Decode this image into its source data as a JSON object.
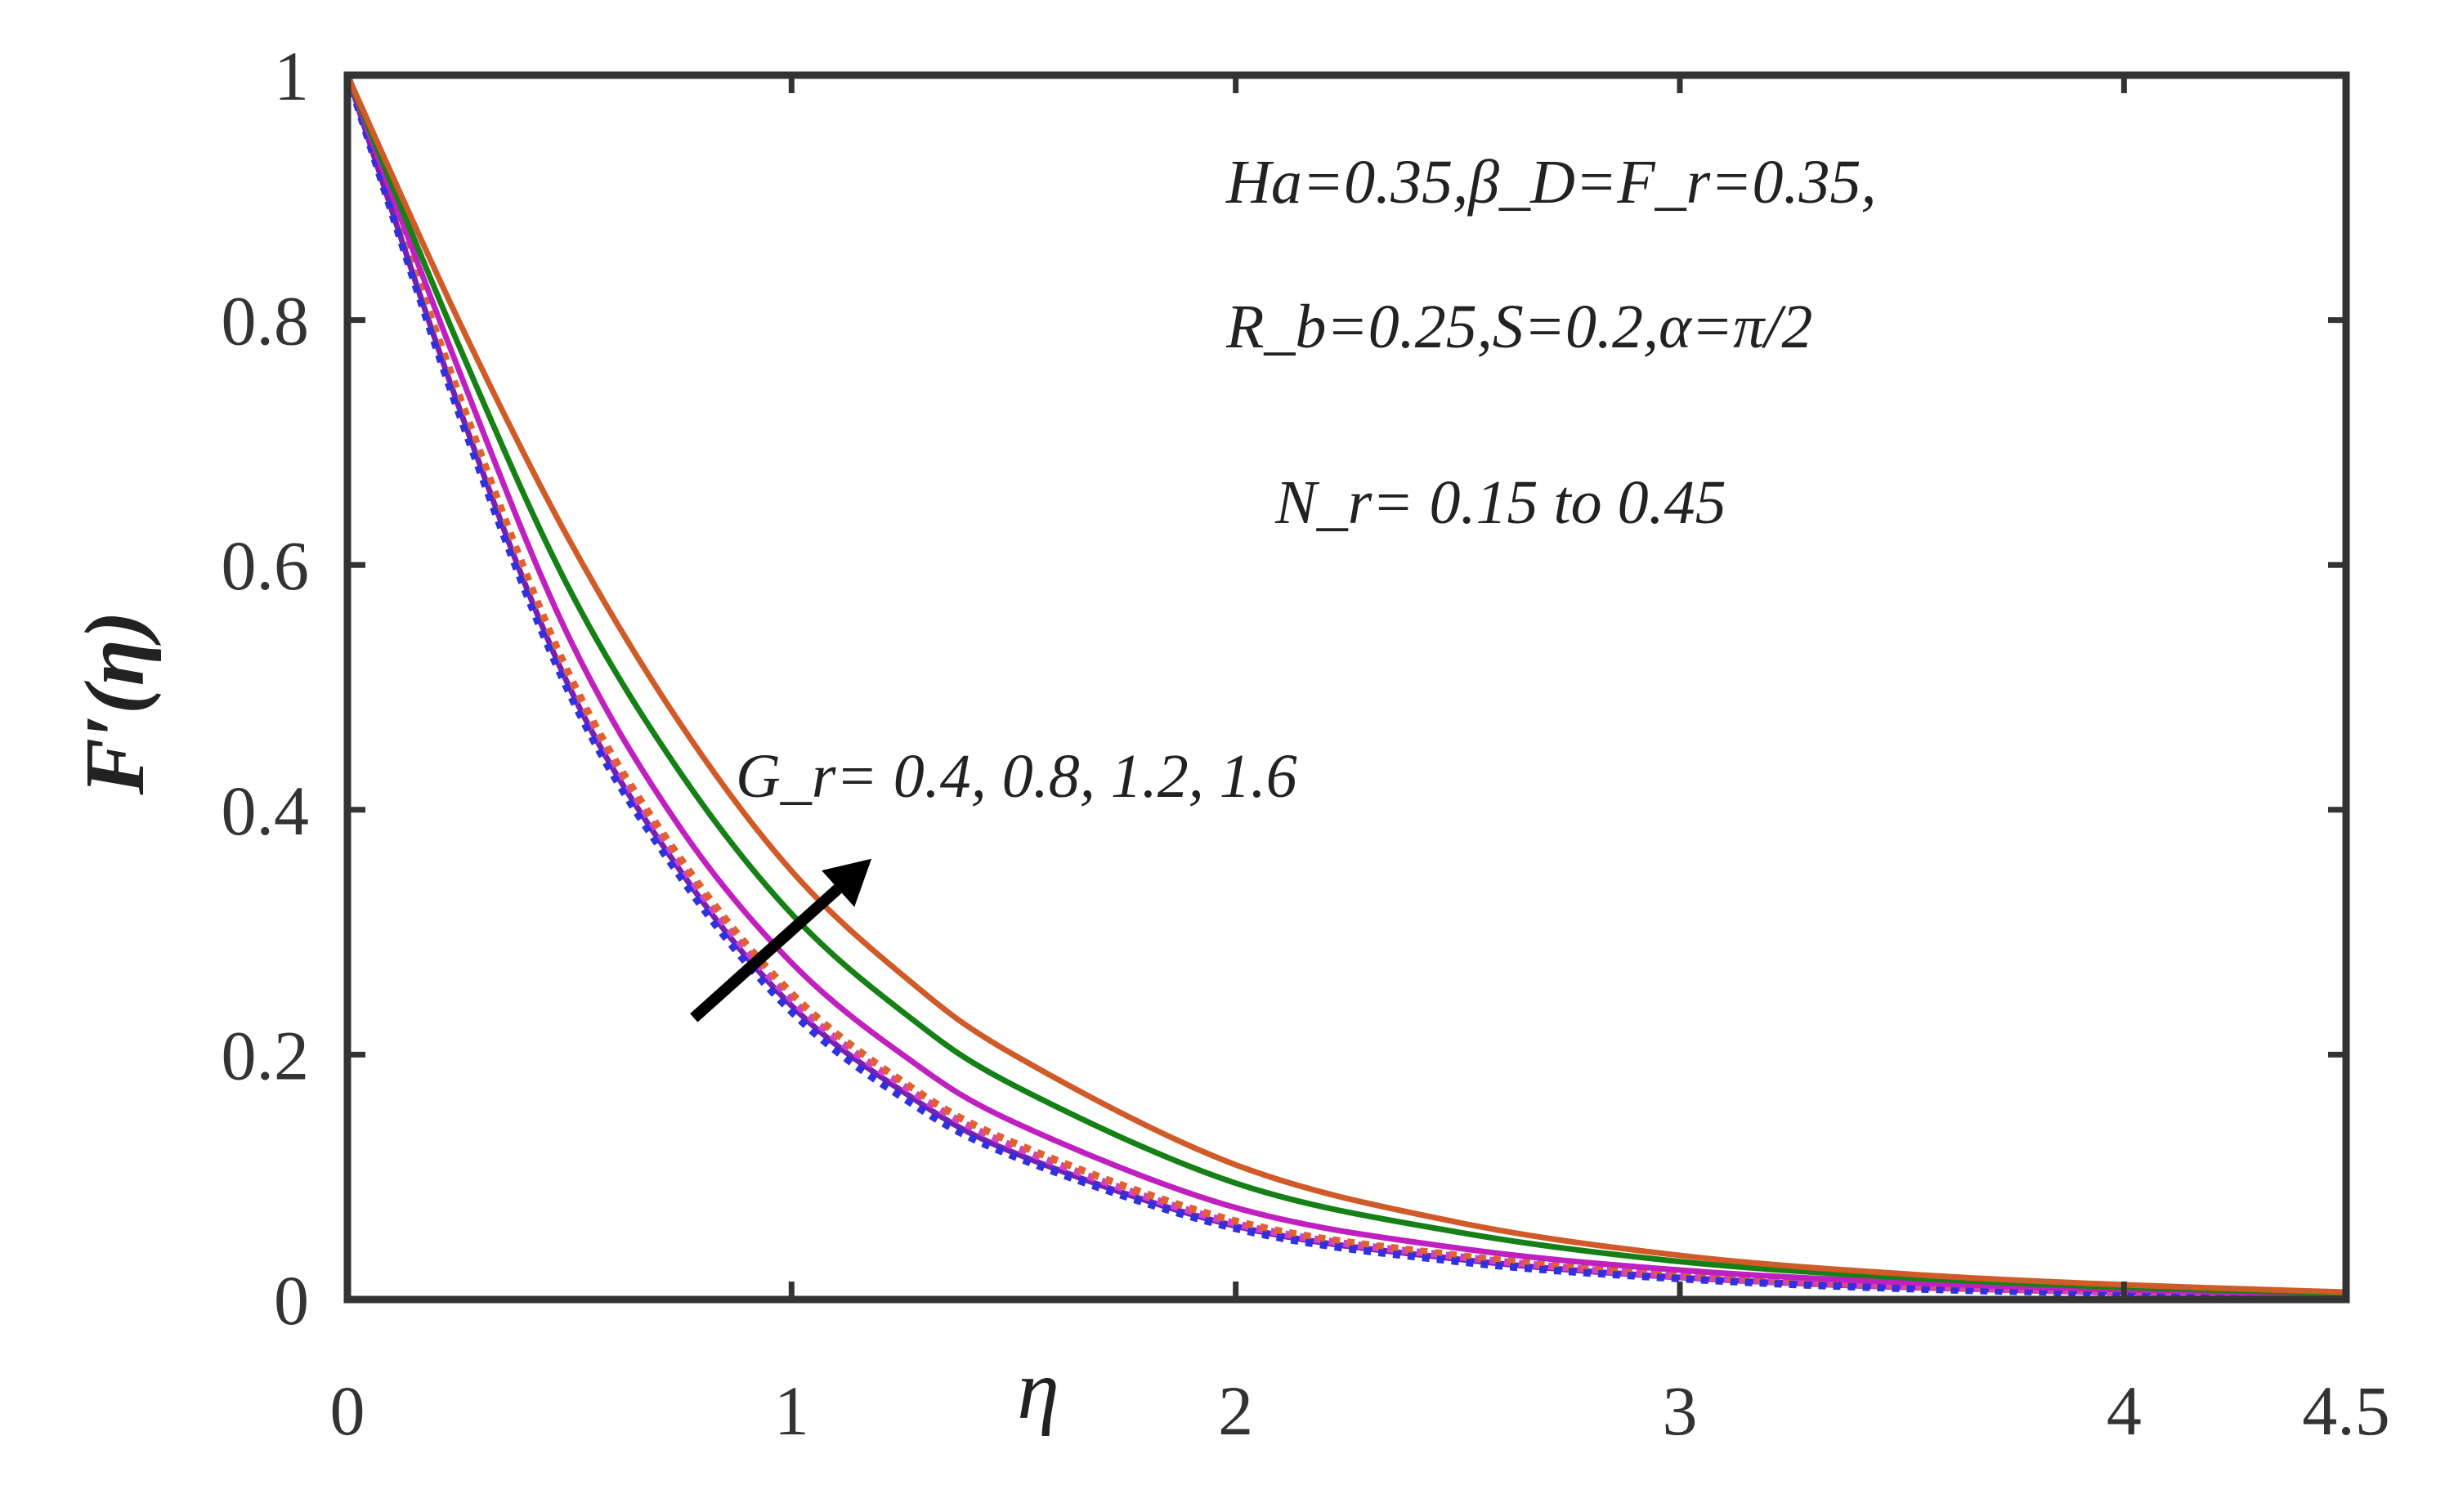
{
  "chart_data": {
    "type": "line",
    "xlabel": "η",
    "ylabel": "F′(η)",
    "xlim": [
      0,
      4.5
    ],
    "ylim": [
      0,
      1
    ],
    "xticks": [
      0,
      1,
      2,
      3,
      4,
      4.5
    ],
    "yticks": [
      0,
      0.2,
      0.4,
      0.6,
      0.8,
      1
    ],
    "grid": false,
    "legend": "none",
    "annotations": {
      "params_line1": "Ha=0.35,β_D=F_r=0.35,",
      "params_line2": "R_b=0.25,S=0.2,α=π/2",
      "params_line3": "N_r= 0.15 to 0.45",
      "gr_label": "G_r= 0.4, 0.8, 1.2, 1.6",
      "arrow": {
        "from": [
          0.78,
          0.23
        ],
        "to": [
          1.18,
          0.36
        ]
      }
    },
    "series": [
      {
        "color": "#7a1fb0",
        "dash": "solid",
        "x": [
          0,
          0.25,
          0.5,
          0.75,
          1,
          1.25,
          1.5,
          2,
          2.5,
          3,
          3.5,
          4,
          4.5
        ],
        "y": [
          1,
          0.73,
          0.5,
          0.35,
          0.24,
          0.17,
          0.12,
          0.06,
          0.033,
          0.018,
          0.01,
          0.006,
          0.003
        ]
      },
      {
        "color": "#d040d0",
        "dash": "dot",
        "x": [
          0,
          0.25,
          0.5,
          0.75,
          1,
          1.25,
          1.5,
          2,
          2.5,
          3,
          3.5,
          4,
          4.5
        ],
        "y": [
          1,
          0.735,
          0.505,
          0.355,
          0.245,
          0.175,
          0.125,
          0.062,
          0.035,
          0.019,
          0.011,
          0.006,
          0.003
        ]
      },
      {
        "color": "#e06030",
        "dash": "dot",
        "x": [
          0,
          0.25,
          0.5,
          0.75,
          1,
          1.25,
          1.5,
          2,
          2.5,
          3,
          3.5,
          4,
          4.5
        ],
        "y": [
          1,
          0.74,
          0.51,
          0.36,
          0.25,
          0.178,
          0.128,
          0.064,
          0.036,
          0.02,
          0.011,
          0.007,
          0.004
        ]
      },
      {
        "color": "#3030e0",
        "dash": "dot",
        "x": [
          0,
          0.25,
          0.5,
          0.75,
          1,
          1.25,
          1.5,
          2,
          2.5,
          3,
          3.5,
          4,
          4.5
        ],
        "y": [
          1,
          0.725,
          0.495,
          0.345,
          0.235,
          0.165,
          0.117,
          0.058,
          0.031,
          0.017,
          0.009,
          0.005,
          0.002
        ]
      },
      {
        "color": "#c020c0",
        "dash": "solid",
        "x": [
          0,
          0.25,
          0.5,
          0.75,
          1,
          1.25,
          1.5,
          2,
          2.5,
          3,
          3.5,
          4,
          4.5
        ],
        "y": [
          1,
          0.76,
          0.54,
          0.385,
          0.275,
          0.2,
          0.145,
          0.075,
          0.042,
          0.024,
          0.014,
          0.008,
          0.004
        ]
      },
      {
        "color": "#158015",
        "dash": "solid",
        "x": [
          0,
          0.25,
          0.5,
          0.75,
          1,
          1.25,
          1.5,
          2,
          2.5,
          3,
          3.5,
          4,
          4.5
        ],
        "y": [
          1,
          0.78,
          0.58,
          0.43,
          0.315,
          0.235,
          0.175,
          0.095,
          0.055,
          0.031,
          0.018,
          0.01,
          0.005
        ]
      },
      {
        "color": "#d05a28",
        "dash": "solid",
        "x": [
          0,
          0.25,
          0.5,
          0.75,
          1,
          1.25,
          1.5,
          2,
          2.5,
          3,
          3.5,
          4,
          4.5
        ],
        "y": [
          1,
          0.8,
          0.62,
          0.47,
          0.35,
          0.265,
          0.2,
          0.11,
          0.063,
          0.036,
          0.021,
          0.012,
          0.006
        ]
      }
    ]
  }
}
